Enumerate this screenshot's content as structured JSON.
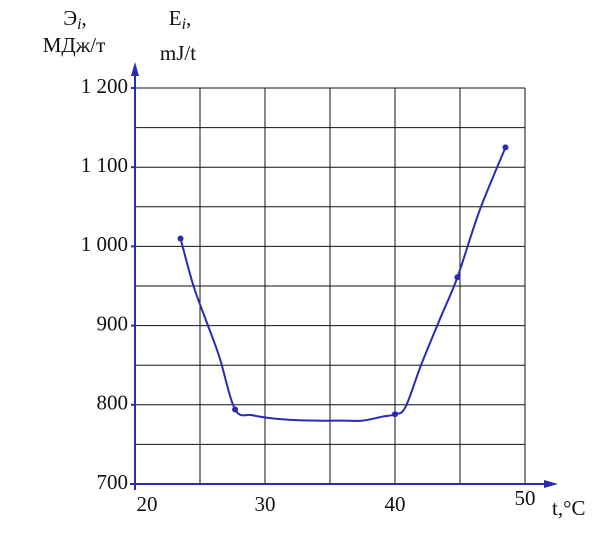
{
  "chart_data": {
    "type": "line",
    "y_label_left": {
      "symbol": "Э",
      "subscript": "i",
      "unit": "МДж/т"
    },
    "y_label_right": {
      "symbol": "E",
      "subscript": "i",
      "unit": "mJ/t"
    },
    "x_label": "t,°C",
    "xlim": [
      20,
      50
    ],
    "ylim": [
      700,
      1200
    ],
    "xticks": [
      20,
      30,
      40,
      50
    ],
    "yticks": [
      700,
      800,
      900,
      {
        "value": 1000,
        "label": "1 000"
      },
      {
        "value": 1100,
        "label": "1 100"
      },
      {
        "value": 1200,
        "label": "1 200"
      }
    ],
    "xgrid": [
      20,
      25,
      30,
      35,
      40,
      45,
      50
    ],
    "ygrid": [
      700,
      750,
      800,
      850,
      900,
      950,
      1000,
      1050,
      1100,
      1150,
      1200
    ],
    "grid": true,
    "series": [
      {
        "color": "#2a2ab4",
        "line": true,
        "markers": false,
        "x": [
          23.5,
          24.5,
          25.5,
          26.5,
          27.7,
          29,
          30.5,
          32,
          34,
          36,
          37.5,
          39,
          40,
          40.8,
          42,
          43.5,
          44.8,
          46.5,
          48.5
        ],
        "values": [
          1010,
          950,
          905,
          860,
          794,
          787,
          783,
          781,
          780,
          780,
          780,
          785,
          788,
          797,
          850,
          910,
          961,
          1045,
          1125
        ]
      },
      {
        "color": "#2a2ab4",
        "line": false,
        "markers": true,
        "x": [
          23.5,
          27.7,
          40,
          44.8,
          48.5
        ],
        "values": [
          1010,
          794,
          788,
          961,
          1125
        ]
      }
    ]
  }
}
